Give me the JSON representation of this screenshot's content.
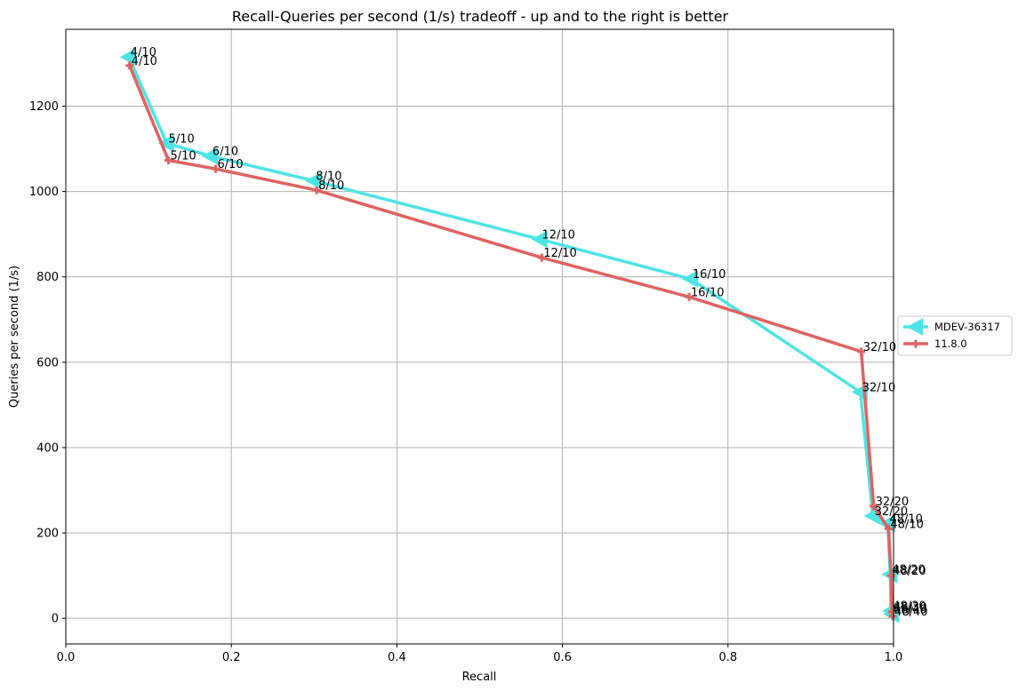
{
  "chart_data": {
    "type": "line",
    "title": "Recall-Queries per second (1/s) tradeoff - up and to the right is better",
    "xlabel": "Recall",
    "ylabel": "Queries per second (1/s)",
    "xlim": [
      0.0,
      1.0
    ],
    "ylim": [
      -60,
      1380
    ],
    "xticks": [
      0.0,
      0.2,
      0.4,
      0.6,
      0.8,
      1.0
    ],
    "xtick_labels": [
      "0.0",
      "0.2",
      "0.4",
      "0.6",
      "0.8",
      "1.0"
    ],
    "yticks": [
      0,
      200,
      400,
      600,
      800,
      1000,
      1200
    ],
    "ytick_labels": [
      "0",
      "200",
      "400",
      "600",
      "800",
      "1000",
      "1200"
    ],
    "grid": true,
    "legend_position": "right, outside plot",
    "series": [
      {
        "name": "MDEV-36317",
        "color": "#4ee4e4",
        "marker": "triangle-left",
        "points": [
          {
            "x": 0.076,
            "y": 1315,
            "label": "4/10"
          },
          {
            "x": 0.122,
            "y": 1113,
            "label": "5/10"
          },
          {
            "x": 0.175,
            "y": 1083,
            "label": "6/10"
          },
          {
            "x": 0.3,
            "y": 1025,
            "label": "8/10"
          },
          {
            "x": 0.573,
            "y": 888,
            "label": "12/10"
          },
          {
            "x": 0.755,
            "y": 795,
            "label": "16/10"
          },
          {
            "x": 0.96,
            "y": 530,
            "label": "32/10"
          },
          {
            "x": 0.975,
            "y": 240,
            "label": "32/20"
          },
          {
            "x": 0.993,
            "y": 222,
            "label": "48/10"
          },
          {
            "x": 0.996,
            "y": 103,
            "label": "48/20"
          },
          {
            "x": 0.997,
            "y": 18,
            "label": "48/30"
          },
          {
            "x": 0.998,
            "y": 10,
            "label": "48/40"
          }
        ]
      },
      {
        "name": "11.8.0",
        "color": "#e06262",
        "marker": "plus",
        "points": [
          {
            "x": 0.077,
            "y": 1295,
            "label": "4/10"
          },
          {
            "x": 0.124,
            "y": 1073,
            "label": "5/10"
          },
          {
            "x": 0.181,
            "y": 1053,
            "label": "6/10"
          },
          {
            "x": 0.303,
            "y": 1003,
            "label": "8/10"
          },
          {
            "x": 0.575,
            "y": 845,
            "label": "12/10"
          },
          {
            "x": 0.753,
            "y": 753,
            "label": "16/10"
          },
          {
            "x": 0.961,
            "y": 625,
            "label": "32/10"
          },
          {
            "x": 0.976,
            "y": 263,
            "label": "32/20"
          },
          {
            "x": 0.994,
            "y": 210,
            "label": "48/10"
          },
          {
            "x": 0.997,
            "y": 100,
            "label": "48/20"
          },
          {
            "x": 0.998,
            "y": 15,
            "label": "48/30"
          },
          {
            "x": 0.999,
            "y": 5,
            "label": "48/40"
          }
        ]
      }
    ]
  }
}
